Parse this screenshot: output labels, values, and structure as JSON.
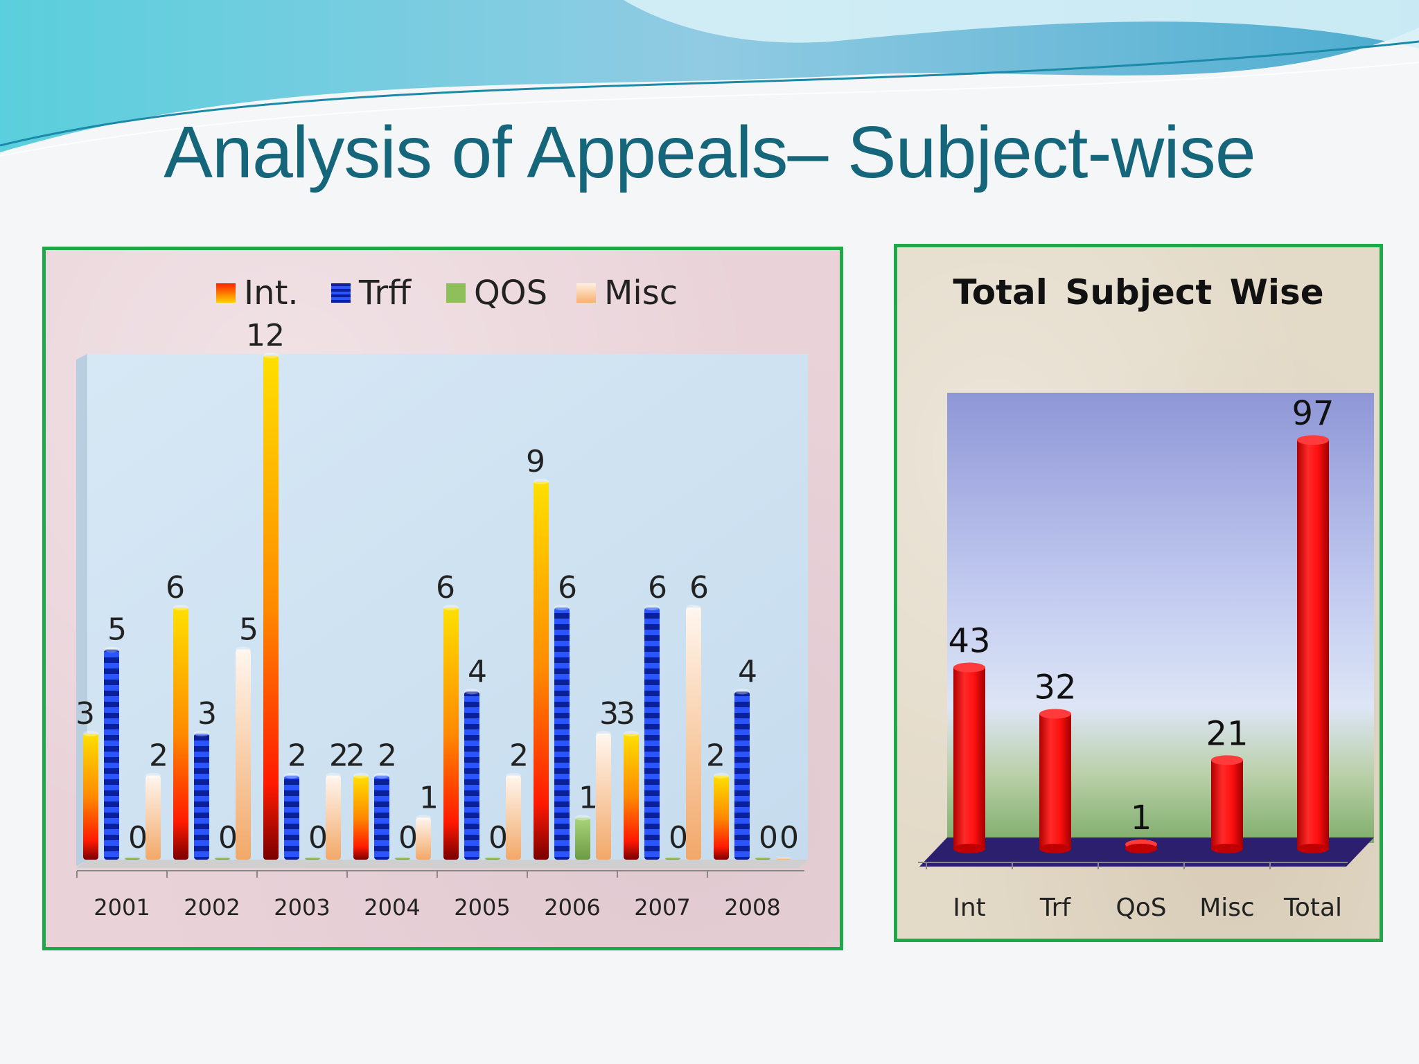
{
  "slide": {
    "title": "Analysis of Appeals– Subject-wise"
  },
  "colors": {
    "title": "#15667a",
    "panel_border": "#1fa84a",
    "int": "#ff2a00",
    "trff": "#0a2fd6",
    "qos": "#8fbf5a",
    "misc": "#f7c79a",
    "total_bars": "#f01818"
  },
  "chart_data": [
    {
      "type": "bar",
      "title": "",
      "xlabel": "",
      "ylabel": "",
      "categories": [
        "2001",
        "2002",
        "2003",
        "2004",
        "2005",
        "2006",
        "2007",
        "2008"
      ],
      "series": [
        {
          "name": "Int.",
          "values": [
            3,
            6,
            12,
            2,
            6,
            9,
            3,
            2
          ]
        },
        {
          "name": "Trff",
          "values": [
            5,
            3,
            2,
            2,
            4,
            6,
            6,
            4
          ]
        },
        {
          "name": "QOS",
          "values": [
            0,
            0,
            0,
            0,
            0,
            1,
            0,
            0
          ]
        },
        {
          "name": "Misc",
          "values": [
            2,
            5,
            2,
            1,
            2,
            3,
            6,
            0
          ]
        }
      ],
      "ylim": [
        0,
        12
      ],
      "legend": "top",
      "grid": false
    },
    {
      "type": "bar",
      "title": "Total Subject Wise",
      "xlabel": "",
      "ylabel": "",
      "categories": [
        "Int",
        "Trf",
        "QoS",
        "Misc",
        "Total"
      ],
      "values": [
        43,
        32,
        1,
        21,
        97
      ],
      "ylim": [
        0,
        100
      ],
      "legend": "none",
      "grid": false
    }
  ]
}
